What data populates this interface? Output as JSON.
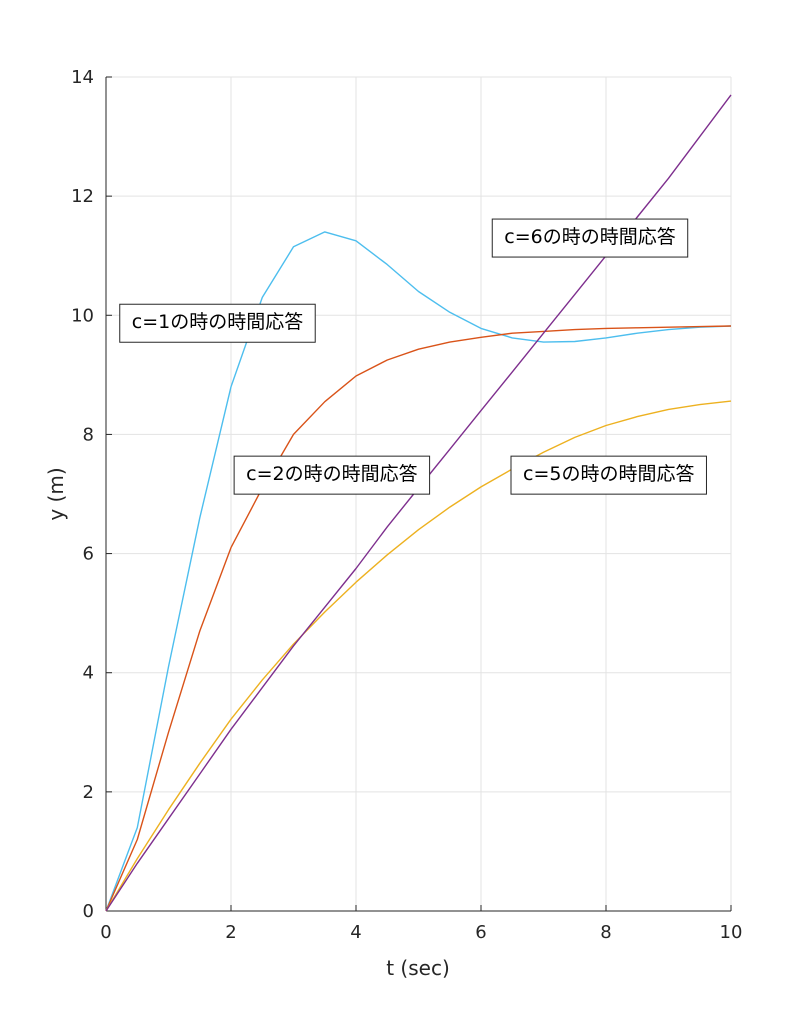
{
  "chart_data": {
    "type": "line",
    "title": "",
    "xlabel": "t (sec)",
    "ylabel": "y (m)",
    "xlim": [
      0,
      10
    ],
    "ylim": [
      0,
      14
    ],
    "xticks": [
      0,
      2,
      4,
      6,
      8,
      10
    ],
    "yticks": [
      0,
      2,
      4,
      6,
      8,
      10,
      12,
      14
    ],
    "grid": true,
    "x": [
      0,
      0.5,
      1,
      1.5,
      2,
      2.5,
      3,
      3.5,
      4,
      4.5,
      5,
      5.5,
      6,
      6.5,
      7,
      7.5,
      8,
      8.5,
      9,
      9.5,
      10
    ],
    "series": [
      {
        "color": "#4DBEEE",
        "values": [
          0,
          1.4,
          4.1,
          6.6,
          8.8,
          10.3,
          11.15,
          11.4,
          11.25,
          10.85,
          10.4,
          10.05,
          9.78,
          9.62,
          9.55,
          9.56,
          9.62,
          9.7,
          9.76,
          9.8,
          9.82
        ]
      },
      {
        "color": "#D95319",
        "values": [
          0,
          1.2,
          3.0,
          4.7,
          6.1,
          7.1,
          8.0,
          8.55,
          8.98,
          9.25,
          9.43,
          9.55,
          9.63,
          9.7,
          9.73,
          9.76,
          9.78,
          9.79,
          9.8,
          9.81,
          9.82
        ]
      },
      {
        "color": "#EDB120",
        "values": [
          0,
          0.88,
          1.7,
          2.48,
          3.22,
          3.88,
          4.48,
          5.02,
          5.52,
          5.98,
          6.4,
          6.78,
          7.12,
          7.42,
          7.7,
          7.95,
          8.15,
          8.3,
          8.42,
          8.5,
          8.56
        ]
      },
      {
        "color": "#7E2F8E",
        "values": [
          0,
          0.8,
          1.55,
          2.3,
          3.05,
          3.75,
          4.45,
          5.1,
          5.75,
          6.45,
          7.1,
          7.75,
          8.4,
          9.05,
          9.7,
          10.35,
          11.0,
          11.65,
          12.3,
          13.0,
          13.7
        ]
      }
    ],
    "annotations": [
      {
        "text": "c=1の時の時間応答",
        "x": 0.22,
        "y": 9.9,
        "anchor": "left"
      },
      {
        "text": "c=2の時の時間応答",
        "x": 2.05,
        "y": 7.35,
        "anchor": "left"
      },
      {
        "text": "c=5の時の時間応答",
        "x": 6.48,
        "y": 7.35,
        "anchor": "left"
      },
      {
        "text": "c=6の時の時間応答",
        "x": 6.18,
        "y": 11.33,
        "anchor": "left"
      }
    ]
  }
}
